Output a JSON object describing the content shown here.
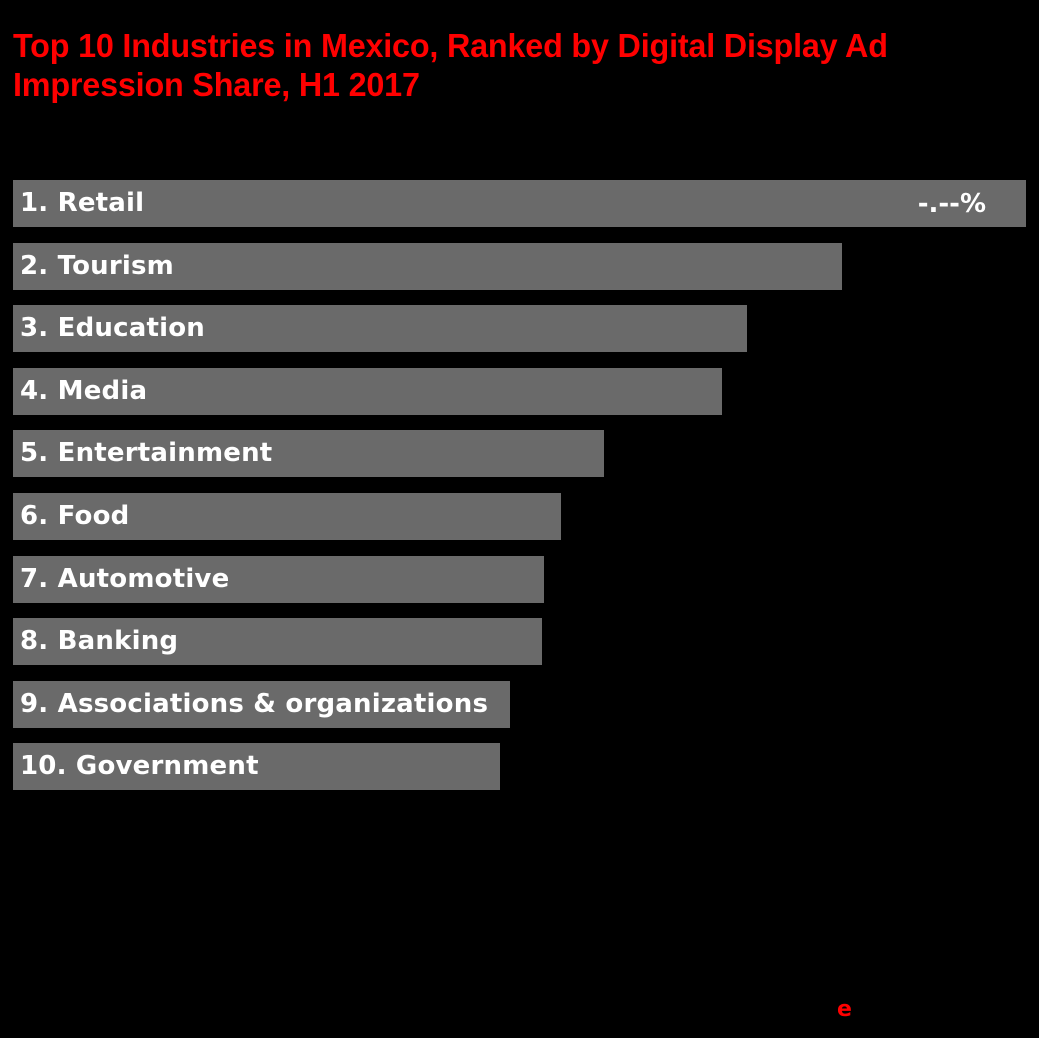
{
  "title": "Top 10 Industries in Mexico, Ranked by Digital Display Ad Impression Share, H1 2017",
  "colors": {
    "background": "#000000",
    "title": "#ff0000",
    "bar": "#6a6a6a",
    "label": "#ffffff",
    "logo": "#ff0000"
  },
  "logo": {
    "text": "e"
  },
  "chart_data": {
    "type": "bar",
    "orientation": "horizontal",
    "title": "Top 10 Industries in Mexico, Ranked by Digital Display Ad Impression Share, H1 2017",
    "xlabel": "",
    "ylabel": "",
    "grid": false,
    "legend": "none",
    "categories": [
      "1. Retail",
      "2. Tourism",
      "3. Education",
      "4. Media",
      "5. Entertainment",
      "6. Food",
      "7. Automotive",
      "8. Banking",
      "9. Associations & organizations",
      "10. Government"
    ],
    "value_labels": [
      "-.--%",
      "",
      "",
      "",
      "",
      "",
      "",
      "",
      "",
      ""
    ],
    "values_relative_to_max": [
      100,
      81.8,
      72.5,
      70.0,
      58.3,
      54.1,
      52.4,
      52.2,
      49.1,
      48.1
    ],
    "values_note": "Actual percentage values are masked (-.--%); values are bar lengths relative to the top bar (Retail = 100)",
    "xlim": [
      0,
      100
    ]
  }
}
